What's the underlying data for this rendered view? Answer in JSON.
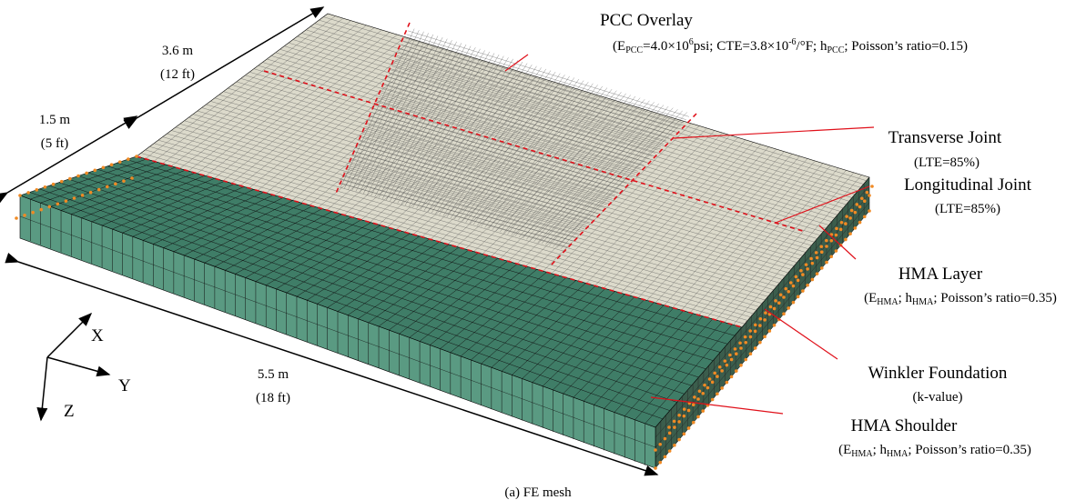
{
  "pcc_overlay": {
    "title": "PCC Overlay",
    "properties": [
      {
        "text": "(E"
      },
      {
        "sub": "PCC"
      },
      {
        "text": "=4.0×10"
      },
      {
        "sup": "6"
      },
      {
        "text": "psi; CTE=3.8×10"
      },
      {
        "sup": "-6"
      },
      {
        "text": "/°F; h"
      },
      {
        "sub": "PCC"
      },
      {
        "text": "; Poisson’s ratio=0.15)"
      }
    ]
  },
  "transverse_joint": {
    "title": "Transverse Joint",
    "properties": [
      {
        "text": "(LTE=85%)"
      }
    ]
  },
  "longitudinal_joint": {
    "title": "Longitudinal Joint",
    "properties": [
      {
        "text": "(LTE=85%)"
      }
    ]
  },
  "hma_layer": {
    "title": "HMA Layer",
    "properties": [
      {
        "text": "(E"
      },
      {
        "sub": "HMA"
      },
      {
        "text": "; h"
      },
      {
        "sub": "HMA"
      },
      {
        "text": "; Poisson’s ratio=0.35)"
      }
    ]
  },
  "winkler_foundation": {
    "title": "Winkler Foundation",
    "properties": [
      {
        "text": "(k-value)"
      }
    ]
  },
  "hma_shoulder": {
    "title": "HMA Shoulder",
    "properties": [
      {
        "text": "(E"
      },
      {
        "sub": "HMA"
      },
      {
        "text": "; h"
      },
      {
        "sub": "HMA"
      },
      {
        "text": "; Poisson’s ratio=0.35)"
      }
    ]
  },
  "dimensions": {
    "length_back": [
      "3.6 m",
      "(12 ft)"
    ],
    "width_shoulder": [
      "1.5 m",
      "(5 ft)"
    ],
    "length_front": [
      "5.5 m",
      "(18 ft)"
    ]
  },
  "axes": {
    "x": "X",
    "y": "Y",
    "z": "Z"
  },
  "caption": "(a) FE mesh"
}
